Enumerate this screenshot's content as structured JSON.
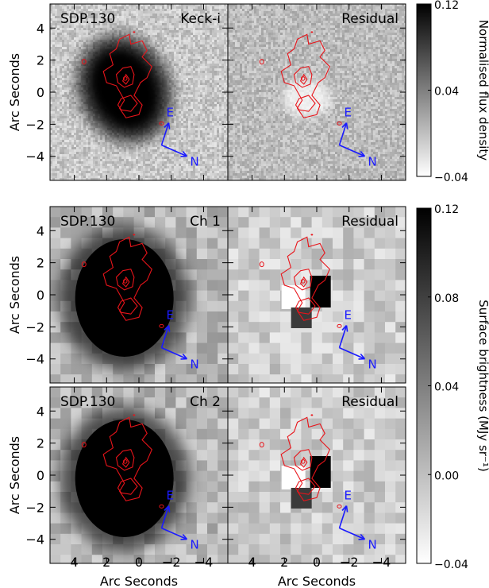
{
  "chart_data": {
    "type": "heatmap",
    "panels": [
      {
        "row": 0,
        "side": "left",
        "label": "SDP.130",
        "band": "Keck-i"
      },
      {
        "row": 0,
        "side": "right",
        "label": "",
        "band": "Residual"
      },
      {
        "row": 1,
        "side": "left",
        "label": "SDP.130",
        "band": "Ch 1"
      },
      {
        "row": 1,
        "side": "right",
        "label": "",
        "band": "Residual"
      },
      {
        "row": 2,
        "side": "left",
        "label": "SDP.130",
        "band": "Ch 2"
      },
      {
        "row": 2,
        "side": "right",
        "label": "",
        "band": "Residual"
      }
    ],
    "ylabel": "Arc Seconds",
    "xlabel": "Arc Seconds",
    "xlim": [
      5.5,
      -5.5
    ],
    "ylim": [
      -5.5,
      5.5
    ],
    "xticks": [
      4,
      2,
      0,
      -2,
      -4
    ],
    "xtick_labels": [
      "4",
      "2",
      "0",
      "−2",
      "−4"
    ],
    "yticks": [
      4,
      2,
      0,
      -2,
      -4
    ],
    "ytick_labels": [
      "4",
      "2",
      "0",
      "−2",
      "−4"
    ],
    "compass": {
      "east": "E",
      "north": "N"
    },
    "colorbars": [
      {
        "label": "Normalised flux density",
        "range": [
          -0.04,
          0.12
        ],
        "ticks": [
          0.12,
          0.04,
          -0.04
        ],
        "tick_labels": [
          "0.12",
          "0.04",
          "−0.04"
        ]
      },
      {
        "label": "Surface brightness (MJy sr⁻¹)",
        "range": [
          -0.04,
          0.12
        ],
        "ticks": [
          0.12,
          0.08,
          0.04,
          0.0,
          -0.04
        ],
        "tick_labels": [
          "0.12",
          "0.08",
          "0.04",
          "0.00",
          "−0.04"
        ]
      }
    ],
    "grid": false
  },
  "colors": {
    "contour": "#e8141a",
    "compass": "#1a1aff",
    "frame": "#000000"
  }
}
